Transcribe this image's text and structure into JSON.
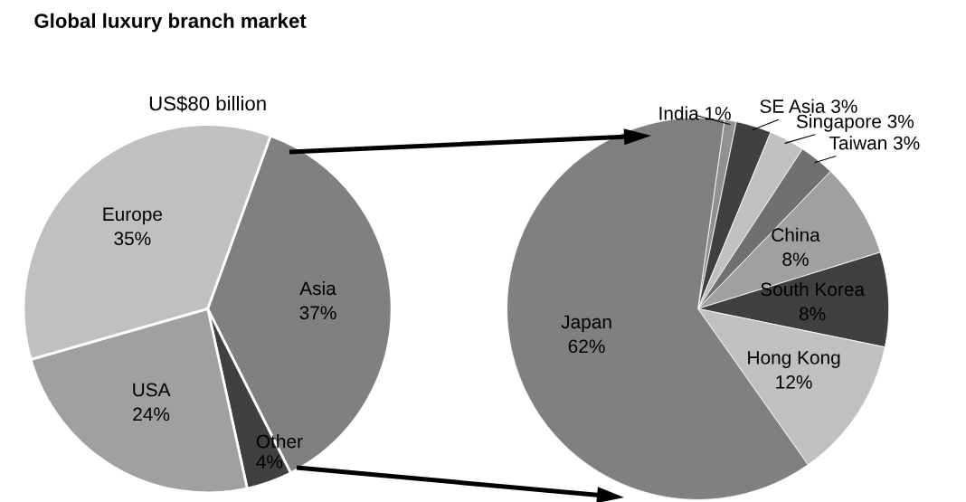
{
  "chart_data": [
    {
      "type": "pie",
      "title": "Global luxury branch market",
      "subtitle": "US$80 billion",
      "categories": [
        "Asia",
        "Other",
        "USA",
        "Europe"
      ],
      "values": [
        37,
        4,
        24,
        35
      ],
      "value_labels": [
        "37%",
        "4%",
        "24%",
        "35%"
      ],
      "colors": [
        "#808080",
        "#404040",
        "#a0a0a0",
        "#c0c0c0"
      ]
    },
    {
      "type": "pie",
      "categories": [
        "India",
        "SE Asia",
        "Singapore",
        "Taiwan",
        "China",
        "South Korea",
        "Hong Kong",
        "Japan"
      ],
      "values": [
        1,
        3,
        3,
        3,
        8,
        8,
        12,
        62
      ],
      "value_labels": [
        "1%",
        "3%",
        "3%",
        "3%",
        "8%",
        "8%",
        "12%",
        "62%"
      ],
      "colors": [
        "#909090",
        "#404040",
        "#c0c0c0",
        "#707070",
        "#a0a0a0",
        "#404040",
        "#c0c0c0",
        "#808080"
      ]
    }
  ]
}
